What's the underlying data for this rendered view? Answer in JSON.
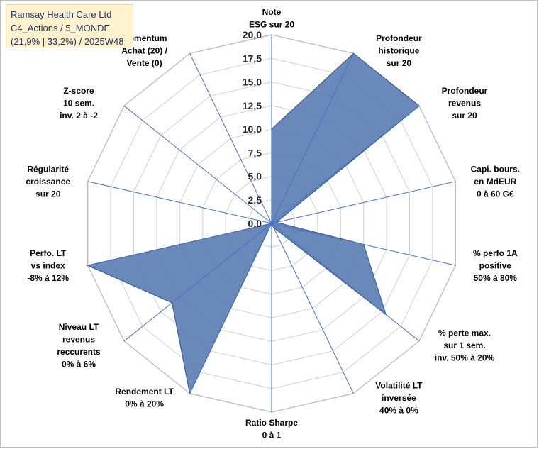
{
  "title_box": {
    "line1": "Ramsay Health Care Ltd",
    "line2": "C4_Actions / 5_MONDE",
    "line3": "(21,9% | 33,2%) / 2025W48"
  },
  "chart_data": {
    "type": "radar",
    "scale": {
      "min": 0,
      "max": 20,
      "step": 2.5
    },
    "tick_labels": [
      "0,0",
      "2,5",
      "5,0",
      "7,5",
      "10,0",
      "12,5",
      "15,0",
      "17,5",
      "20,0"
    ],
    "axes": [
      {
        "label": [
          "Note",
          "ESG sur 20"
        ],
        "value": 10
      },
      {
        "label": [
          "Profondeur",
          "historique",
          "sur 20"
        ],
        "value": 20
      },
      {
        "label": [
          "Profondeur",
          "revenus",
          "sur 20"
        ],
        "value": 20
      },
      {
        "label": [
          "Capi. bours.",
          "en MdEUR",
          "0 à 60 G€"
        ],
        "value": 0.5
      },
      {
        "label": [
          "% perfo 1A",
          "positive",
          "50% à 80%"
        ],
        "value": 10
      },
      {
        "label": [
          "% perte max.",
          "sur 1 sem.",
          "inv. 50% à 20%"
        ],
        "value": 15.5
      },
      {
        "label": [
          "Volatilité LT",
          "inversée",
          "40% à 0%"
        ],
        "value": 0.5
      },
      {
        "label": [
          "Ratio Sharpe",
          "0 à 1"
        ],
        "value": 0
      },
      {
        "label": [
          "Rendement LT",
          "0% à 20%"
        ],
        "value": 20
      },
      {
        "label": [
          "Niveau LT",
          "revenus",
          "reccurents",
          "0% à 6%"
        ],
        "value": 13.5
      },
      {
        "label": [
          "Perfo. LT",
          "vs index",
          "-8% à 12%"
        ],
        "value": 20
      },
      {
        "label": [
          "Régularité",
          "croissance",
          "sur 20"
        ],
        "value": 0
      },
      {
        "label": [
          "Z-score",
          "10 sem.",
          "inv. 2 à -2"
        ],
        "value": 0
      },
      {
        "label": [
          "Momentum",
          "Achat (20) /",
          "Vente (0)"
        ],
        "value": 0
      }
    ],
    "series": [
      {
        "values": [
          10,
          20,
          20,
          0.5,
          10,
          15.5,
          0.5,
          0,
          20,
          13.5,
          20,
          0,
          0,
          0
        ]
      }
    ],
    "colors": {
      "fill": "#5b7fb3",
      "stroke": "#3e5f94",
      "grid": "#d0d0d0",
      "spoke": "#4472c4"
    },
    "grid": true
  }
}
